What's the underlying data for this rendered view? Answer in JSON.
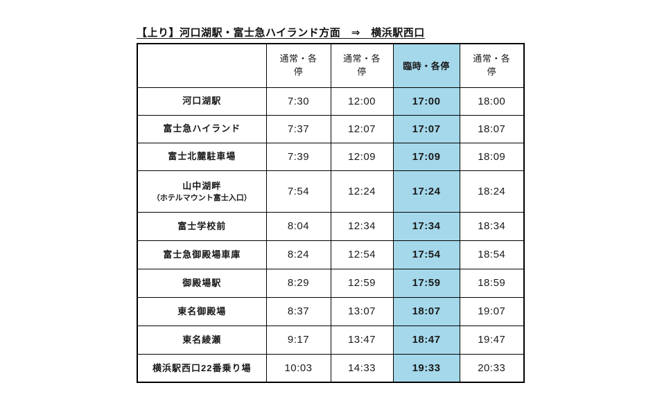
{
  "title": "【上り】河口湖駅・富士急ハイランド方面　⇒　横浜駅西口",
  "table": {
    "corner_label": "",
    "columns": [
      {
        "label": "通常・各停",
        "type": "normal"
      },
      {
        "label": "通常・各停",
        "type": "normal"
      },
      {
        "label": "臨時・各停",
        "type": "special"
      },
      {
        "label": "通常・各停",
        "type": "normal"
      }
    ],
    "rows": [
      {
        "station": "河口湖駅",
        "note": "",
        "times": [
          "7:30",
          "12:00",
          "17:00",
          "18:00"
        ]
      },
      {
        "station": "富士急ハイランド",
        "note": "",
        "times": [
          "7:37",
          "12:07",
          "17:07",
          "18:07"
        ]
      },
      {
        "station": "富士北麓駐車場",
        "note": "",
        "times": [
          "7:39",
          "12:09",
          "17:09",
          "18:09"
        ]
      },
      {
        "station": "山中湖畔",
        "note": "（ホテルマウント富士入口）",
        "times": [
          "7:54",
          "12:24",
          "17:24",
          "18:24"
        ]
      },
      {
        "station": "富士学校前",
        "note": "",
        "times": [
          "8:04",
          "12:34",
          "17:34",
          "18:34"
        ]
      },
      {
        "station": "富士急御殿場車庫",
        "note": "",
        "times": [
          "8:24",
          "12:54",
          "17:54",
          "18:54"
        ]
      },
      {
        "station": "御殿場駅",
        "note": "",
        "times": [
          "8:29",
          "12:59",
          "17:59",
          "18:59"
        ]
      },
      {
        "station": "東名御殿場",
        "note": "",
        "times": [
          "8:37",
          "13:07",
          "18:07",
          "19:07"
        ]
      },
      {
        "station": "東名綾瀬",
        "note": "",
        "times": [
          "9:17",
          "13:47",
          "18:47",
          "19:47"
        ]
      },
      {
        "station": "横浜駅西口22番乗り場",
        "note": "",
        "times": [
          "10:03",
          "14:33",
          "19:33",
          "20:33"
        ]
      }
    ]
  },
  "colors": {
    "special_column_bg": "#A4D8EA",
    "border": "#000000",
    "text": "#1A1A1A"
  }
}
